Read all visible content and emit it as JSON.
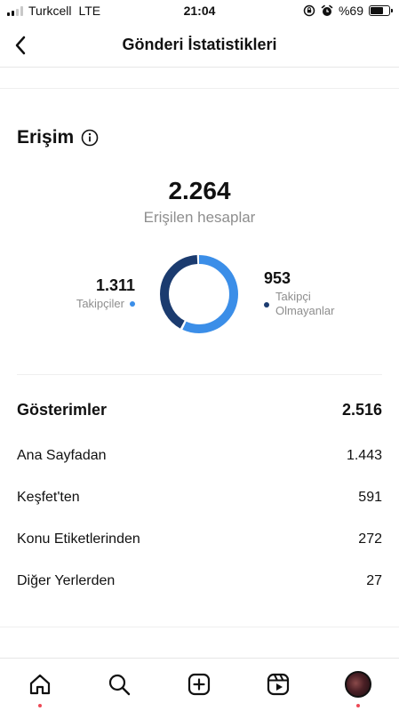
{
  "status_bar": {
    "carrier": "Turkcell",
    "network": "LTE",
    "time": "21:04",
    "battery": "%69",
    "battery_level": 0.69,
    "icons": [
      "signal-icon",
      "rotation-lock-icon",
      "alarm-icon",
      "battery-icon"
    ]
  },
  "header": {
    "title": "Gönderi İstatistikleri",
    "back_icon": "chevron-left-icon"
  },
  "reach": {
    "title": "Erişim",
    "info_icon": "info-icon",
    "total": "2.264",
    "total_label": "Erişilen hesaplar",
    "followers": {
      "value": "1.311",
      "label": "Takipçiler",
      "color": "#3b8ee8"
    },
    "non_followers": {
      "value": "953",
      "label_line1": "Takipçi",
      "label_line2": "Olmayanlar",
      "color": "#1b3b6f"
    },
    "chart_data": {
      "type": "pie",
      "categories": [
        "Takipçiler",
        "Takipçi Olmayanlar"
      ],
      "values": [
        1311,
        953
      ],
      "colors": [
        "#3b8ee8",
        "#1b3b6f"
      ]
    }
  },
  "impressions": {
    "title": "Gösterimler",
    "total": "2.516",
    "rows": [
      {
        "label": "Ana Sayfadan",
        "value": "1.443"
      },
      {
        "label": "Keşfet'ten",
        "value": "591"
      },
      {
        "label": "Konu Etiketlerinden",
        "value": "272"
      },
      {
        "label": "Diğer Yerlerden",
        "value": "27"
      }
    ]
  },
  "bottom_nav": {
    "items": [
      "home-icon",
      "search-icon",
      "create-post-icon",
      "reels-icon",
      "profile-avatar"
    ],
    "notification_color": "#ed4956"
  }
}
